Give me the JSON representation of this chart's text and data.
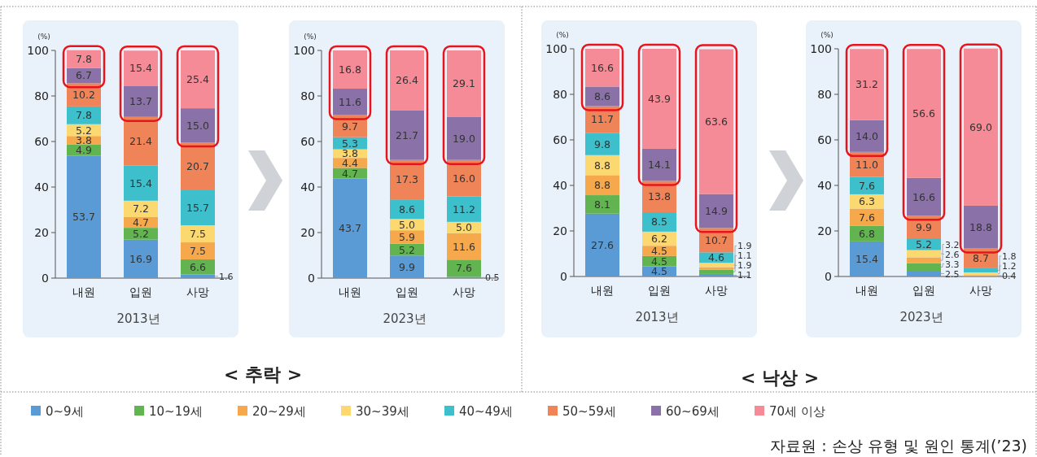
{
  "chart_data": [
    {
      "type": "bar",
      "stacked": true,
      "xlabel": "2013년",
      "ylabel": "(%)",
      "categories": [
        "내원",
        "입원",
        "사망"
      ],
      "ylim": [
        0,
        100
      ],
      "yticks": [
        0,
        20,
        40,
        60,
        80,
        100
      ],
      "legend": "bottom",
      "annotations": [
        "< 추락 >"
      ],
      "series": [
        {
          "name": "0~9세",
          "color": "#5b9bd5",
          "values": [
            53.7,
            16.9,
            1.6
          ],
          "value_labels": [
            "53.7",
            "16.9",
            "1.6"
          ]
        },
        {
          "name": "10~19세",
          "color": "#62b451",
          "values": [
            4.9,
            5.2,
            6.6
          ],
          "value_labels": [
            "4.9",
            "5.2",
            "6.6"
          ]
        },
        {
          "name": "20~29세",
          "color": "#f6a94c",
          "values": [
            3.8,
            4.7,
            7.5
          ],
          "value_labels": [
            "3.8",
            "4.7",
            "7.5"
          ]
        },
        {
          "name": "30~39세",
          "color": "#fcd870",
          "values": [
            5.2,
            7.2,
            7.5
          ],
          "value_labels": [
            "5.2",
            "7.2",
            "7.5"
          ]
        },
        {
          "name": "40~49세",
          "color": "#3ebfcc",
          "values": [
            7.8,
            15.4,
            15.7
          ],
          "value_labels": [
            "7.8",
            "15.4",
            "15.7"
          ]
        },
        {
          "name": "50~59세",
          "color": "#f08459",
          "values": [
            10.2,
            21.4,
            20.7
          ],
          "value_labels": [
            "10.2",
            "21.4",
            "20.7"
          ]
        },
        {
          "name": "60~69세",
          "color": "#8a72a8",
          "values": [
            6.7,
            13.7,
            15.0
          ],
          "value_labels": [
            "6.7",
            "13.7",
            "15.0"
          ]
        },
        {
          "name": "70세 이상",
          "color": "#f48b96",
          "values": [
            7.8,
            15.4,
            25.4
          ],
          "value_labels": [
            "7.8",
            "15.4",
            "25.4"
          ]
        }
      ]
    },
    {
      "type": "bar",
      "stacked": true,
      "xlabel": "2023년",
      "ylabel": "(%)",
      "categories": [
        "내원",
        "입원",
        "사망"
      ],
      "ylim": [
        0,
        100
      ],
      "yticks": [
        0,
        20,
        40,
        60,
        80,
        100
      ],
      "series": [
        {
          "color": "#5b9bd5",
          "values": [
            43.7,
            9.9,
            0.5
          ],
          "value_labels": [
            "43.7",
            "9.9",
            "0.5"
          ]
        },
        {
          "color": "#62b451",
          "values": [
            4.7,
            5.2,
            7.6
          ],
          "value_labels": [
            "4.7",
            "5.2",
            "7.6"
          ]
        },
        {
          "color": "#f6a94c",
          "values": [
            4.4,
            5.9,
            11.6
          ],
          "value_labels": [
            "4.4",
            "5.9",
            "11.6"
          ]
        },
        {
          "color": "#fcd870",
          "values": [
            3.8,
            5.0,
            5.0
          ],
          "value_labels": [
            "3.8",
            "5.0",
            "5.0"
          ]
        },
        {
          "color": "#3ebfcc",
          "values": [
            5.3,
            8.6,
            11.2
          ],
          "value_labels": [
            "5.3",
            "8.6",
            "11.2"
          ]
        },
        {
          "color": "#f08459",
          "values": [
            9.7,
            17.3,
            16.0
          ],
          "value_labels": [
            "9.7",
            "17.3",
            "16.0"
          ]
        },
        {
          "color": "#8a72a8",
          "values": [
            11.6,
            21.7,
            19.0
          ],
          "value_labels": [
            "11.6",
            "21.7",
            "19.0"
          ]
        },
        {
          "color": "#f48b96",
          "values": [
            16.8,
            26.4,
            29.1
          ],
          "value_labels": [
            "16.8",
            "26.4",
            "29.1"
          ]
        }
      ]
    },
    {
      "type": "bar",
      "stacked": true,
      "xlabel": "2013년",
      "ylabel": "(%)",
      "categories": [
        "내원",
        "입원",
        "사망"
      ],
      "ylim": [
        0,
        100
      ],
      "yticks": [
        0,
        20,
        40,
        60,
        80,
        100
      ],
      "annotations": [
        "< 낙상 >"
      ],
      "series": [
        {
          "color": "#5b9bd5",
          "values": [
            27.6,
            4.5,
            1.1
          ],
          "value_labels": [
            "27.6",
            "4.5",
            "1.1"
          ]
        },
        {
          "color": "#62b451",
          "values": [
            8.1,
            4.5,
            1.9
          ],
          "value_labels": [
            "8.1",
            "4.5",
            "1.9"
          ]
        },
        {
          "color": "#f6a94c",
          "values": [
            8.8,
            4.5,
            1.1
          ],
          "value_labels": [
            "8.8",
            "4.5",
            "1.1"
          ]
        },
        {
          "color": "#fcd870",
          "values": [
            8.8,
            6.2,
            1.9
          ],
          "value_labels": [
            "8.8",
            "6.2",
            "1.9"
          ]
        },
        {
          "color": "#3ebfcc",
          "values": [
            9.8,
            8.5,
            4.6
          ],
          "value_labels": [
            "9.8",
            "8.5",
            "4.6"
          ]
        },
        {
          "color": "#f08459",
          "values": [
            11.7,
            13.8,
            10.7
          ],
          "value_labels": [
            "11.7",
            "13.8",
            "10.7"
          ]
        },
        {
          "color": "#8a72a8",
          "values": [
            8.6,
            14.1,
            14.9
          ],
          "value_labels": [
            "8.6",
            "14.1",
            "14.9"
          ]
        },
        {
          "color": "#f48b96",
          "values": [
            16.6,
            43.9,
            63.6
          ],
          "value_labels": [
            "16.6",
            "43.9",
            "63.6"
          ]
        }
      ]
    },
    {
      "type": "bar",
      "stacked": true,
      "xlabel": "2023년",
      "ylabel": "(%)",
      "categories": [
        "내원",
        "입원",
        "사망"
      ],
      "ylim": [
        0,
        100
      ],
      "yticks": [
        0,
        20,
        40,
        60,
        80,
        100
      ],
      "annotations": [
        "자료원 : 손상 유형 및 원인 통계(’23)"
      ],
      "series": [
        {
          "color": "#5b9bd5",
          "values": [
            15.4,
            2.5,
            0.1
          ],
          "value_labels": [
            "15.4",
            "2.5",
            null
          ]
        },
        {
          "color": "#62b451",
          "values": [
            6.8,
            3.3,
            0.1
          ],
          "value_labels": [
            "6.8",
            "3.3",
            null
          ]
        },
        {
          "color": "#f6a94c",
          "values": [
            7.6,
            2.6,
            0.4
          ],
          "value_labels": [
            "7.6",
            "2.6",
            "0.4"
          ]
        },
        {
          "color": "#fcd870",
          "values": [
            6.3,
            3.2,
            1.2
          ],
          "value_labels": [
            "6.3",
            "3.2",
            "1.2"
          ]
        },
        {
          "color": "#3ebfcc",
          "values": [
            7.6,
            5.2,
            1.8
          ],
          "value_labels": [
            "7.6",
            "5.2",
            "1.8"
          ]
        },
        {
          "color": "#f08459",
          "values": [
            11.0,
            9.9,
            8.7
          ],
          "value_labels": [
            "11.0",
            "9.9",
            "8.7"
          ]
        },
        {
          "color": "#8a72a8",
          "values": [
            14.0,
            16.6,
            18.8
          ],
          "value_labels": [
            "14.0",
            "16.6",
            "18.8"
          ]
        },
        {
          "color": "#f48b96",
          "values": [
            31.2,
            56.6,
            69.0
          ],
          "value_labels": [
            "31.2",
            "56.6",
            "69.0"
          ]
        }
      ]
    }
  ]
}
